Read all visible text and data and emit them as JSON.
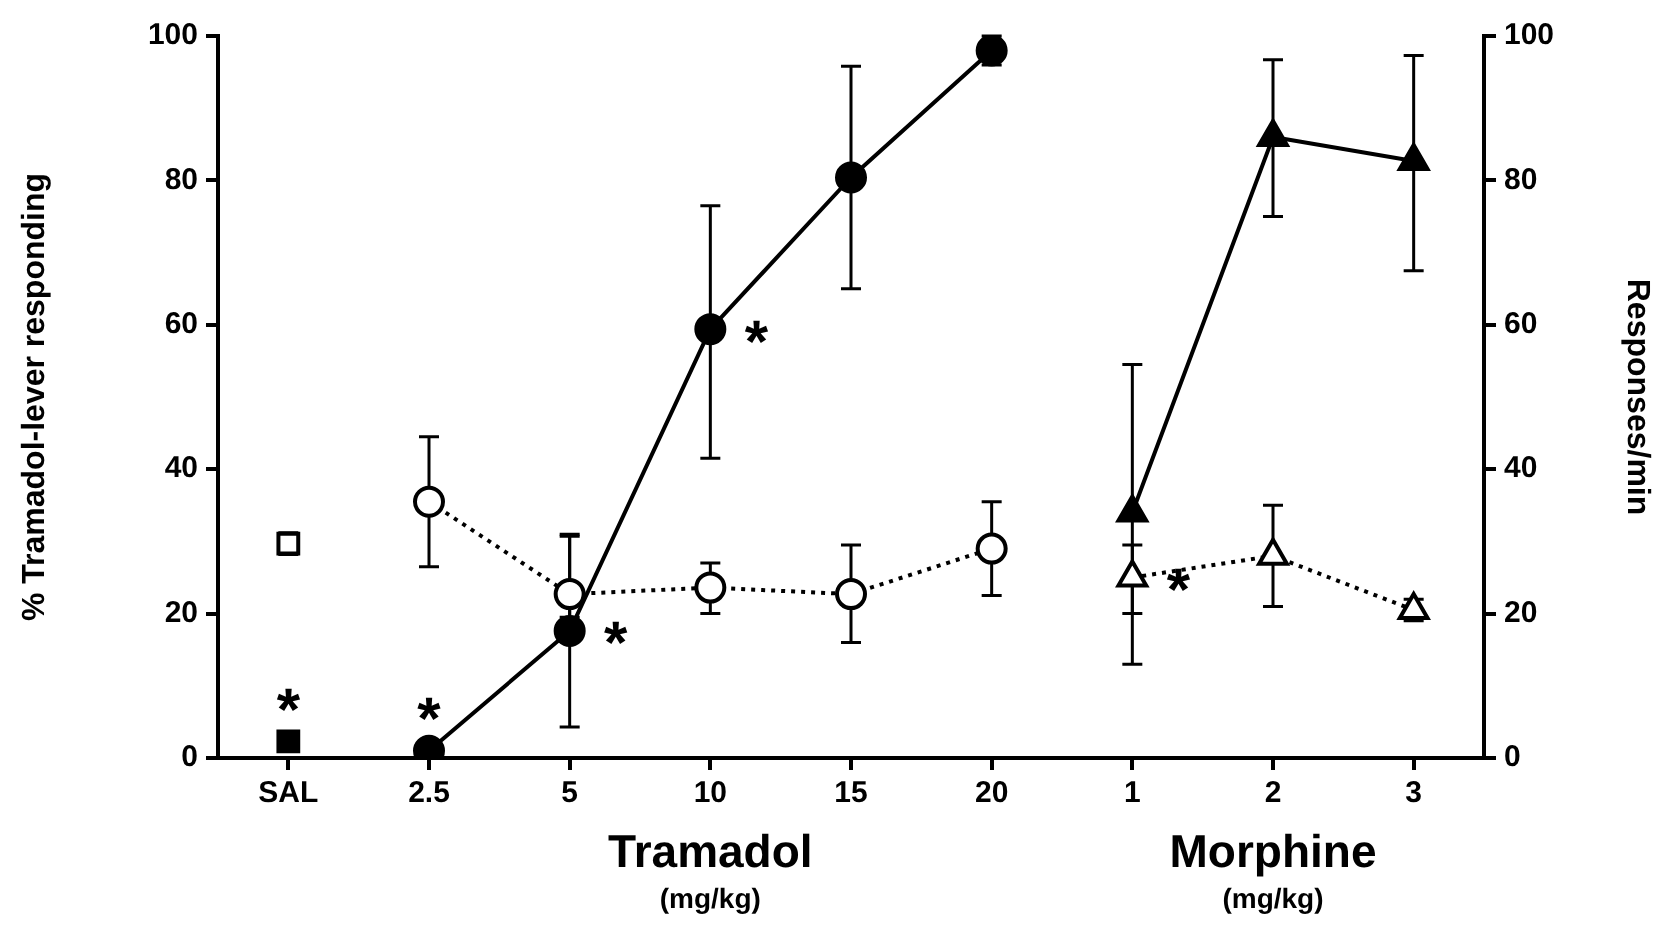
{
  "chart_data": {
    "type": "line",
    "categories": [
      "SAL",
      "2.5",
      "5",
      "10",
      "15",
      "20",
      "1",
      "2",
      "3"
    ],
    "ylabel": "% Tramadol-lever responding",
    "y2label": "Responses/min",
    "ylim": [
      0,
      100
    ],
    "yticks": [
      0,
      20,
      40,
      60,
      80,
      100
    ],
    "y2lim": [
      0,
      100
    ],
    "y2ticks": [
      0,
      20,
      40,
      60,
      80,
      100
    ],
    "series": [
      {
        "type": "scatter",
        "marker": "square",
        "color": "#000000",
        "values": [
          2.3,
          null,
          null,
          null,
          null,
          null,
          null,
          null,
          null
        ]
      },
      {
        "type": "scatter",
        "marker": "square",
        "color": "#ffffff",
        "values": [
          29.7,
          null,
          null,
          null,
          null,
          null,
          null,
          null,
          null
        ],
        "errors": [
          1.5,
          null,
          null,
          null,
          null,
          null,
          null,
          null,
          null
        ]
      },
      {
        "marker": "circle",
        "color": "#000000",
        "line_style": "solid",
        "values": [
          null,
          1,
          17.6,
          59.4,
          80.4,
          98,
          null,
          null,
          null
        ],
        "errors": [
          null,
          null,
          [
            4.3,
            30.7
          ],
          [
            41.5,
            76.5
          ],
          [
            65,
            95.8
          ],
          [
            96,
            100
          ],
          null,
          null,
          null
        ]
      },
      {
        "marker": "circle",
        "color": "#ffffff",
        "line_style": "dotted",
        "values": [
          null,
          35.5,
          22.7,
          23.6,
          22.7,
          29,
          null,
          null,
          null
        ],
        "errors": [
          null,
          [
            26.5,
            44.5
          ],
          [
            19.5,
            31
          ],
          [
            20,
            27
          ],
          [
            16,
            29.5
          ],
          [
            22.5,
            35.5
          ],
          null,
          null,
          null
        ]
      },
      {
        "marker": "triangle",
        "color": "#000000",
        "line_style": "solid",
        "values": [
          null,
          null,
          null,
          null,
          null,
          null,
          34,
          86,
          82.7
        ],
        "errors": [
          null,
          null,
          null,
          null,
          null,
          null,
          [
            13,
            54.5
          ],
          [
            75,
            96.7
          ],
          [
            67.5,
            97.3
          ]
        ]
      },
      {
        "marker": "triangle",
        "color": "#ffffff",
        "line_style": "dotted",
        "values": [
          null,
          null,
          null,
          null,
          null,
          null,
          25,
          28,
          20.5
        ],
        "errors": [
          null,
          null,
          null,
          null,
          null,
          null,
          [
            20,
            29.5
          ],
          [
            21,
            35
          ],
          [
            19,
            22
          ]
        ]
      }
    ],
    "annotations": [
      {
        "text": "*",
        "x": "SAL",
        "y": 2.3
      },
      {
        "text": "*",
        "x": "2.5",
        "y": 1
      },
      {
        "text": "*",
        "x": "5",
        "y": 17.6
      },
      {
        "text": "*",
        "x": "10",
        "y": 59.4
      },
      {
        "text": "*",
        "x": "1",
        "y": 25
      },
      "Tramadol\n(mg/kg)",
      "Morphine\n(mg/kg)"
    ]
  }
}
